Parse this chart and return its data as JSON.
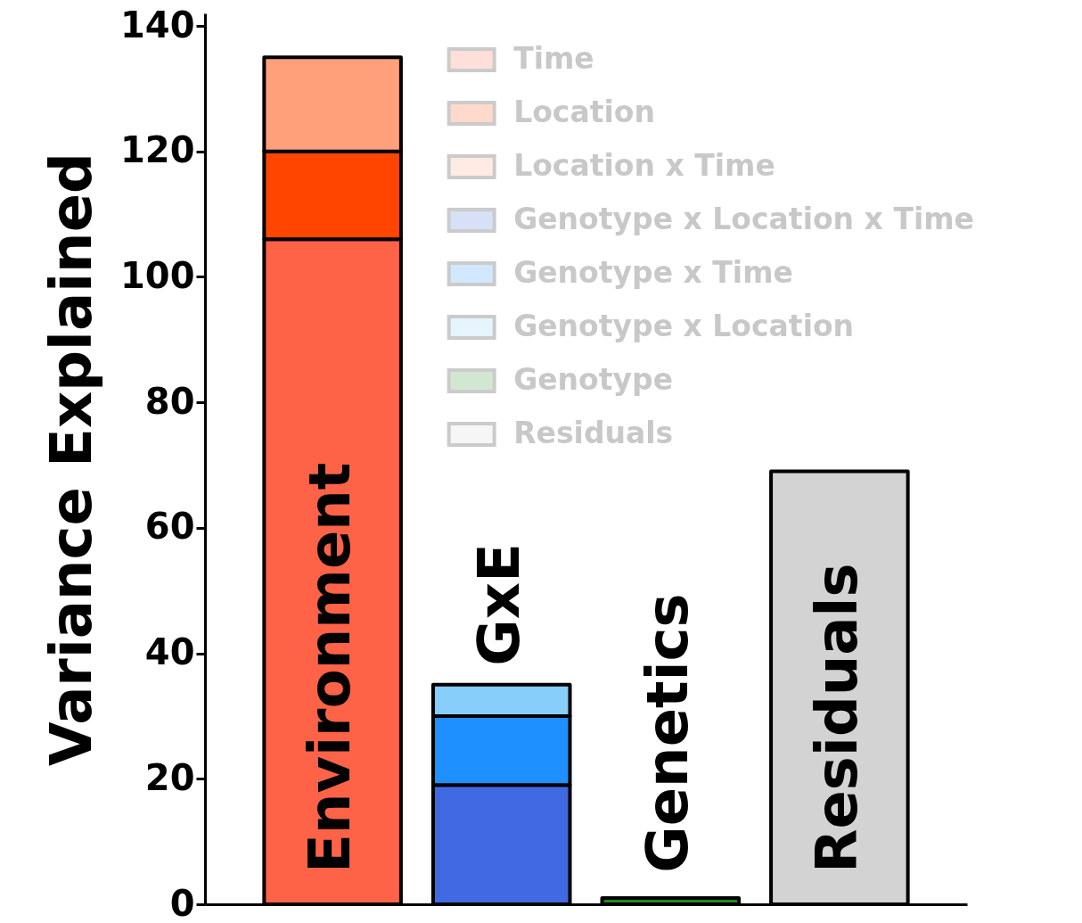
{
  "chart_data": {
    "type": "bar",
    "stacked": true,
    "ylabel": "Variance Explained",
    "categories": [
      "Environment",
      "GxE",
      "Genetics",
      "Residuals"
    ],
    "series": [
      {
        "name": "Time",
        "color": "#ff6347",
        "values": [
          106,
          null,
          null,
          null
        ]
      },
      {
        "name": "Location",
        "color": "#ff4500",
        "values": [
          14,
          null,
          null,
          null
        ]
      },
      {
        "name": "Location x Time",
        "color": "#ffa07a",
        "values": [
          15,
          null,
          null,
          null
        ]
      },
      {
        "name": "Genotype x Location x Time",
        "color": "#4169e1",
        "values": [
          null,
          19,
          null,
          null
        ]
      },
      {
        "name": "Genotype x Time",
        "color": "#1e90ff",
        "values": [
          null,
          11,
          null,
          null
        ]
      },
      {
        "name": "Genotype x Location",
        "color": "#87cefa",
        "values": [
          null,
          5,
          null,
          null
        ]
      },
      {
        "name": "Genotype",
        "color": "#228b22",
        "values": [
          null,
          null,
          1,
          null
        ]
      },
      {
        "name": "Residuals",
        "color": "#d3d3d3",
        "values": [
          null,
          null,
          null,
          69
        ]
      }
    ],
    "ylim": [
      0,
      142
    ],
    "yticks": [
      0,
      20,
      40,
      60,
      80,
      100,
      120,
      140
    ],
    "grid": false,
    "legend": "top right",
    "tick_labels": "y"
  }
}
